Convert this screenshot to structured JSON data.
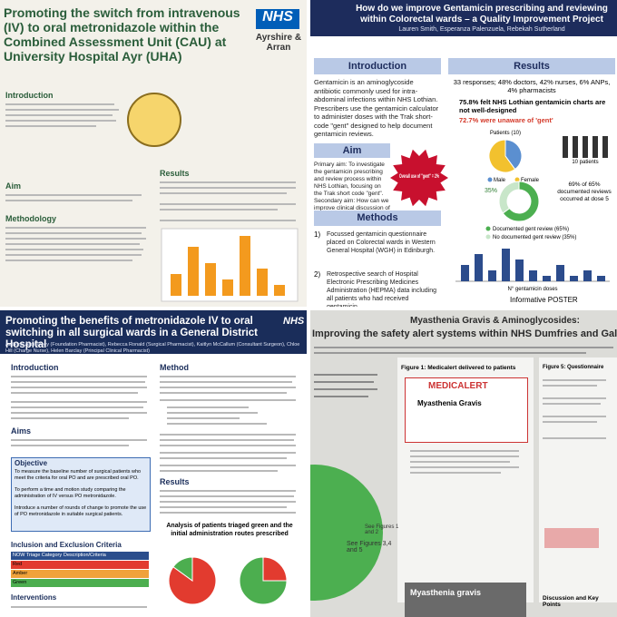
{
  "panels": [
    {
      "title": "Promoting the switch from intravenous (IV) to oral metronidazole within the Combined Assessment Unit (CAU) at University Hospital Ayr (UHA)",
      "logo": "NHS",
      "org": "Ayrshire & Arran",
      "sections": [
        "Introduction",
        "Aim",
        "Methodology",
        "Results"
      ],
      "bar_values": [
        4,
        9,
        6,
        3,
        11,
        5,
        2
      ]
    },
    {
      "title": "How do we improve Gentamicin prescribing and reviewing within Colorectal wards – a Quality Improvement Project",
      "authors": "Lauren Smith, Esperanza Palenzuela, Rebekah Sutherland",
      "intro_heading": "Introduction",
      "intro_text": "Gentamicin is an aminoglycoside antibiotic commonly used for intra-abdominal infections within NHS Lothian. Prescribers use the gentamicin calculator to administer doses with the Trak short-code \"gent\" designed to help document gentamicin reviews.",
      "aim_heading": "Aim",
      "aim_text": "Primary aim: To investigate the gentamicin prescribing and review process within NHS Lothian, focusing on the Trak short code \"gent\". Secondary aim: How can we improve clinical discussion of the antibiotic journey.",
      "methods_heading": "Methods",
      "methods": [
        "Focussed gentamicin questionnaire placed on Colorectal wards in Western General Hospital (WGH) in Edinburgh.",
        "Retrospective search of Hospital Electronic Prescribing Medicines Administration (HEPMA) data including all patients who had received gentamicin"
      ],
      "results_heading": "Results",
      "results": [
        "33 responses; 48% doctors, 42% nurses, 6% ANPs, 4% pharmacists",
        "75.8% felt NHS Lothian gentamicin charts are not well-designed",
        "72.7% were unaware of 'gent'"
      ],
      "pie": {
        "title": "Patients (10)",
        "series": [
          {
            "name": "Male",
            "value": 4,
            "color": "#5b8fd0"
          },
          {
            "name": "Female",
            "value": 6,
            "color": "#f2c12e"
          }
        ]
      },
      "patients_icon_label": "10 patients",
      "starburst": "Overall use of \"gent\" = 2%",
      "donut": {
        "series": [
          {
            "name": "Documented gent review (65%)",
            "value": 65,
            "color": "#4caf50"
          },
          {
            "name": "No documented gent review (35%)",
            "value": 35,
            "color": "#c8e6c9"
          }
        ],
        "value_label": "35%"
      },
      "note": "69% of 65% documented reviews occurred at dose 5",
      "bar_chart": {
        "xlabel": "N° gentamicin doses",
        "values": [
          3,
          5,
          2,
          6,
          4,
          2,
          1,
          3,
          1,
          2,
          1
        ]
      },
      "footer": "Informative POSTER"
    },
    {
      "title": "Promoting the benefits of metronidazole IV to oral switching in all surgical wards in a General District Hospital",
      "logo": "NHS",
      "authors": "Authors: Alice Deey (Foundation Pharmacist), Rebecca Ronald (Surgical Pharmacist), Kaitlyn McCallum (Consultant Surgeon), Chloe Hill (Charge Nurse), Helen Barclay (Principal Clinical Pharmacist)",
      "headings": {
        "introduction": "Introduction",
        "aims": "Aims",
        "objective": "Objective",
        "criteria": "Inclusion and Exclusion Criteria",
        "interventions": "Interventions",
        "method": "Method",
        "results": "Results"
      },
      "objectives": [
        "To measure the baseline number of surgical patients who meet the criteria for oral PO and are prescribed oral PO.",
        "To perform a time and motion study comparing the administration of IV versus PO metronidazole.",
        "Introduce a number of rounds of change to promote the use of PO metronidazole in suitable surgical patients."
      ],
      "table": {
        "header": [
          "NOW Triage Category",
          "Description/Criteria"
        ],
        "rows": [
          "Red",
          "Amber",
          "Green"
        ]
      },
      "chart_title": "Analysis of patients triaged green and the initial administration routes prescribed",
      "pies": [
        {
          "values": [
            85,
            15
          ]
        },
        {
          "values": [
            25,
            75
          ]
        }
      ]
    },
    {
      "title": "Myasthenia Gravis & Aminoglycosides:",
      "subtitle": "Improving the safety alert systems within NHS Dumfries and Galloway and patient aware",
      "figure1": "Figure 1: Medicalert delivered to patients",
      "card_title": "MEDICALERT",
      "card_text": "Myasthenia Gravis",
      "card2_text": "Myasthenia gravis",
      "see": "See Figures 3,4 and 5",
      "see2": "See Figures 1 and 2",
      "figure5": "Figure 5: Questionnaire",
      "discussion": "Discussion and Key Points"
    }
  ]
}
